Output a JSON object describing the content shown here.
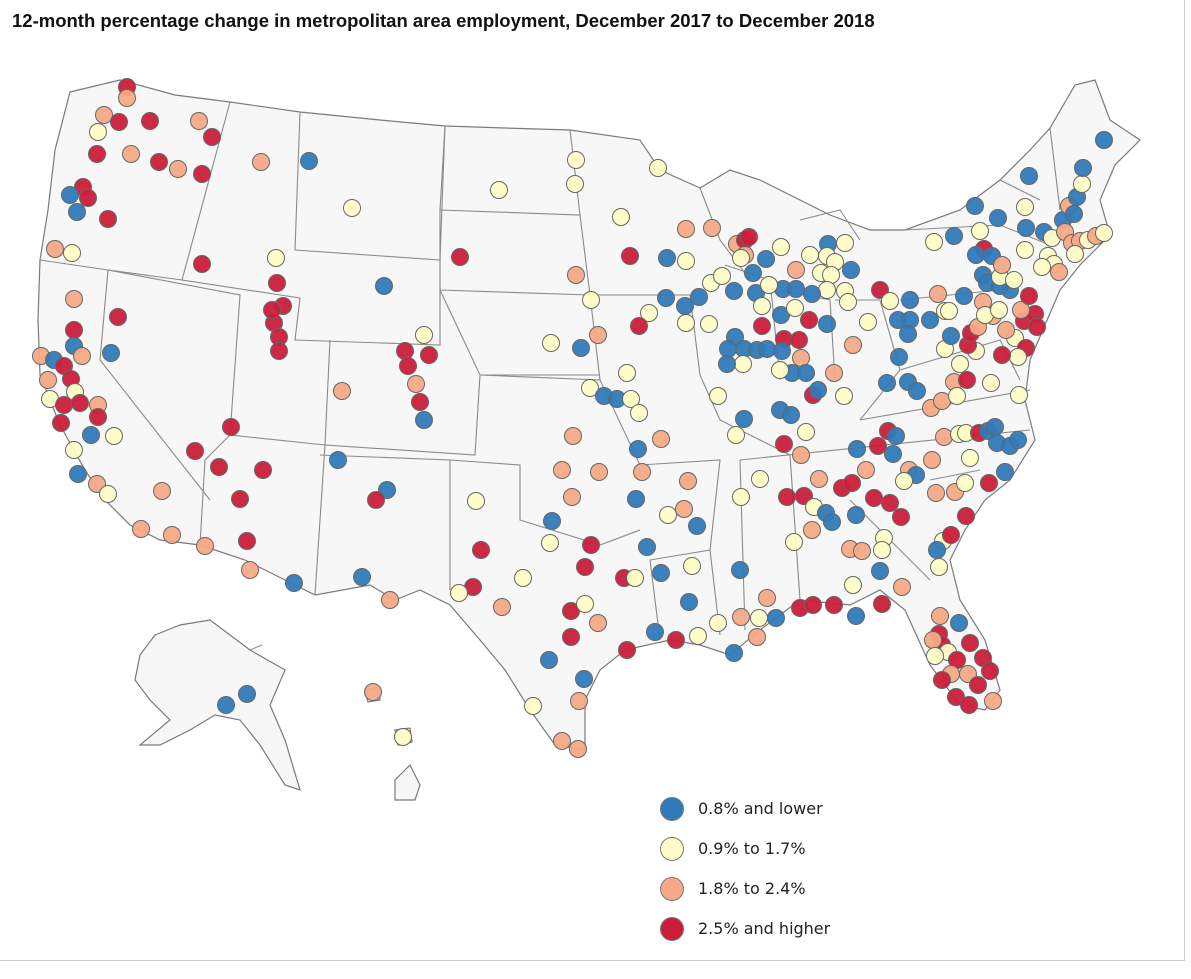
{
  "title": "12-month percentage change in metropolitan area employment, December 2017 to December 2018",
  "legend": [
    {
      "label": "0.8% and lower",
      "color": "#2f7ab9",
      "category": "low"
    },
    {
      "label": "0.9% to 1.7%",
      "color": "#fefdc7",
      "category": "mid_low"
    },
    {
      "label": "1.8% to 2.4%",
      "color": "#f6a986",
      "category": "mid_high"
    },
    {
      "label": "2.5% and higher",
      "color": "#cb1d3a",
      "category": "high"
    }
  ],
  "chart_data": {
    "type": "scatter",
    "description_of_categories": [
      "low",
      "mid_low",
      "mid_high",
      "high"
    ],
    "metro_areas_count_by_category": {
      "low": 85,
      "mid_low": 80,
      "mid_high": 90,
      "high": 95
    }
  }
}
